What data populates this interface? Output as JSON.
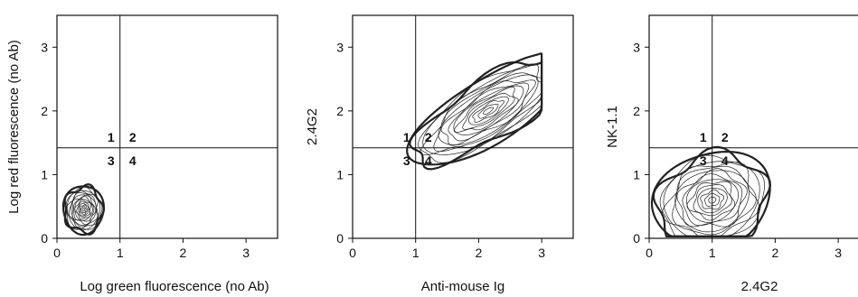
{
  "chart_data": [
    {
      "type": "contour",
      "xlabel": "Log green fluorescence (no Ab)",
      "ylabel": "Log red fluorescence (no Ab)",
      "xlim": [
        0,
        3.5
      ],
      "ylim": [
        0,
        3.5
      ],
      "xticks": [
        "0",
        "1",
        "2",
        "3"
      ],
      "yticks": [
        "0",
        "1",
        "2",
        "3"
      ],
      "gate": {
        "x": 1.0,
        "y": 1.42
      },
      "quadrant_labels": [
        "1",
        "2",
        "3",
        "4"
      ],
      "population": {
        "center": [
          0.42,
          0.45
        ],
        "spread": [
          0.32,
          0.38
        ],
        "extent_x": [
          0.0,
          1.08
        ],
        "extent_y": [
          0.03,
          1.25
        ],
        "angle_deg": 0,
        "heavy_outline": true
      }
    },
    {
      "type": "contour",
      "xlabel": "Anti-mouse Ig",
      "ylabel": "2.4G2",
      "xlim": [
        0,
        3.5
      ],
      "ylim": [
        0,
        3.5
      ],
      "xticks": [
        "0",
        "1",
        "2",
        "3"
      ],
      "yticks": [
        "0",
        "1",
        "2",
        "3"
      ],
      "gate": {
        "x": 1.0,
        "y": 1.42
      },
      "quadrant_labels": [
        "1",
        "2",
        "3",
        "4"
      ],
      "population": {
        "center": [
          2.15,
          2.0
        ],
        "spread": [
          1.45,
          0.5
        ],
        "extent_x": [
          0.0,
          3.0
        ],
        "extent_y": [
          0.03,
          2.92
        ],
        "angle_deg": 32,
        "heavy_outline": true
      }
    },
    {
      "type": "contour",
      "xlabel": "2.4G2",
      "ylabel": "NK-1.1",
      "xlim": [
        0,
        3.5
      ],
      "ylim": [
        0,
        3.5
      ],
      "xticks": [
        "0",
        "1",
        "2",
        "3"
      ],
      "yticks": [
        "0",
        "1",
        "2",
        "3"
      ],
      "gate": {
        "x": 1.0,
        "y": 1.42
      },
      "quadrant_labels": [
        "1",
        "2",
        "3",
        "4"
      ],
      "population": {
        "center": [
          1.0,
          0.6
        ],
        "spread": [
          0.95,
          0.75
        ],
        "extent_x": [
          0.0,
          2.05
        ],
        "extent_y": [
          0.03,
          2.3
        ],
        "angle_deg": 18,
        "heavy_outline": true
      }
    }
  ]
}
